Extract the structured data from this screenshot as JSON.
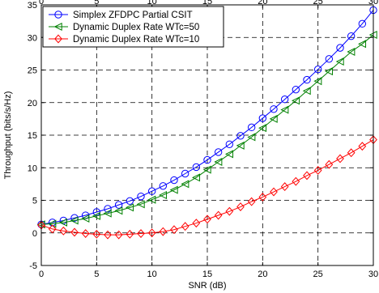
{
  "chart_data": {
    "type": "line",
    "xlabel": "SNR (dB)",
    "ylabel": "Throughput (bits/s/Hz)",
    "xlim": [
      0,
      30
    ],
    "ylim": [
      -5,
      35
    ],
    "xticks": [
      0,
      5,
      10,
      15,
      20,
      25,
      30
    ],
    "yticks": [
      -5,
      0,
      5,
      10,
      15,
      20,
      25,
      30,
      35
    ],
    "x": [
      0,
      1,
      2,
      3,
      4,
      5,
      6,
      7,
      8,
      9,
      10,
      11,
      12,
      13,
      14,
      15,
      16,
      17,
      18,
      19,
      20,
      21,
      22,
      23,
      24,
      25,
      26,
      27,
      28,
      29,
      30
    ],
    "grid": true,
    "legend_position": "top-left",
    "series": [
      {
        "name": "Simplex ZFDPC Partial CSIT",
        "color": "#0000ff",
        "marker": "circle",
        "values": [
          1.3,
          1.6,
          1.9,
          2.3,
          2.7,
          3.2,
          3.7,
          4.3,
          4.9,
          5.6,
          6.4,
          7.2,
          8.1,
          9.1,
          10.1,
          11.2,
          12.4,
          13.6,
          14.9,
          16.2,
          17.6,
          19.0,
          20.5,
          22.0,
          23.5,
          25.1,
          26.7,
          28.4,
          30.2,
          32.1,
          34.2
        ]
      },
      {
        "name": "Dynamic Duplex Rate WTc=50",
        "color": "#008000",
        "marker": "triangle-left",
        "values": [
          1.3,
          1.4,
          1.6,
          1.9,
          2.2,
          2.6,
          3.0,
          3.4,
          3.9,
          4.4,
          5.1,
          5.8,
          6.6,
          7.5,
          8.5,
          9.7,
          10.9,
          12.1,
          13.4,
          14.7,
          16.1,
          17.5,
          18.9,
          20.3,
          21.8,
          23.3,
          24.8,
          26.3,
          27.8,
          29.0,
          30.4
        ]
      },
      {
        "name": "Dynamic Duplex Rate WTc=10",
        "color": "#ff0000",
        "marker": "diamond",
        "values": [
          1.2,
          0.6,
          0.3,
          0.1,
          -0.1,
          -0.2,
          -0.3,
          -0.3,
          -0.2,
          -0.1,
          0.0,
          0.2,
          0.5,
          1.0,
          1.5,
          2.1,
          2.7,
          3.3,
          4.0,
          4.8,
          5.5,
          6.3,
          7.1,
          7.9,
          8.8,
          9.6,
          10.5,
          11.4,
          12.3,
          13.3,
          14.3
        ]
      }
    ]
  }
}
